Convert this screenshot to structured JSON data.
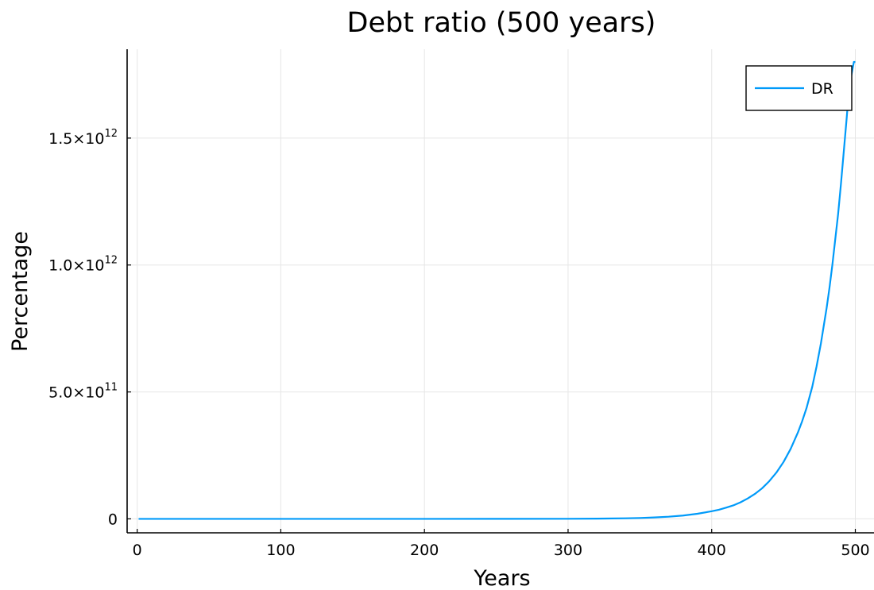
{
  "chart_data": {
    "type": "line",
    "title": "Debt ratio (500 years)",
    "xlabel": "Years",
    "ylabel": "Percentage",
    "xlim": [
      -7,
      513
    ],
    "ylim": [
      -55000000000.0,
      1850000000000.0
    ],
    "xticks": [
      0,
      100,
      200,
      300,
      400,
      500
    ],
    "xtick_labels": [
      "0",
      "100",
      "200",
      "300",
      "400",
      "500"
    ],
    "yticks": [
      {
        "value": 0,
        "label": "0",
        "mantissa": "0",
        "exponent": ""
      },
      {
        "value": 500000000000.0,
        "label": "5.0×10^11",
        "mantissa": "5.0×10",
        "exponent": "11"
      },
      {
        "value": 1000000000000.0,
        "label": "1.0×10^12",
        "mantissa": "1.0×10",
        "exponent": "12"
      },
      {
        "value": 1500000000000.0,
        "label": "1.5×10^12",
        "mantissa": "1.5×10",
        "exponent": "12"
      }
    ],
    "grid": true,
    "legend_position": "top-right",
    "series": [
      {
        "name": "DR",
        "color": "#009af9",
        "x": [
          1,
          50,
          100,
          150,
          200,
          250,
          300,
          320,
          340,
          350,
          360,
          370,
          380,
          390,
          400,
          405,
          410,
          415,
          420,
          425,
          430,
          435,
          440,
          445,
          450,
          455,
          460,
          463,
          466,
          470,
          473,
          476,
          478,
          480,
          482,
          484,
          486,
          488,
          490,
          492,
          494,
          495,
          496,
          497,
          498,
          499,
          500
        ],
        "y": [
          0,
          0,
          0,
          0,
          0,
          20000000.0,
          300000000.0,
          800000000.0,
          2200000000.0,
          3500000000.0,
          5500000000.0,
          8500000000.0,
          13000000000.0,
          20000000000.0,
          30000000000.0,
          36000000000.0,
          44000000000.0,
          53000000000.0,
          65000000000.0,
          80000000000.0,
          98000000000.0,
          120000000000.0,
          148000000000.0,
          182000000000.0,
          224000000000.0,
          276000000000.0,
          340000000000.0,
          385000000000.0,
          436000000000.0,
          520000000000.0,
          600000000000.0,
          690000000000.0,
          760000000000.0,
          830000000000.0,
          910000000000.0,
          1000000000000.0,
          1100000000000.0,
          1200000000000.0,
          1320000000000.0,
          1450000000000.0,
          1580000000000.0,
          1650000000000.0,
          1700000000000.0,
          1740000000000.0,
          1770000000000.0,
          1800000000000.0,
          1800000000000.0
        ]
      }
    ]
  }
}
